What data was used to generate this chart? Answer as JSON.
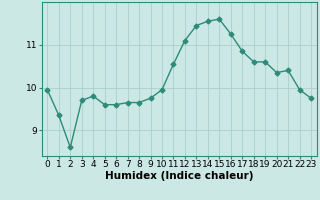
{
  "title": "",
  "xlabel": "Humidex (Indice chaleur)",
  "ylabel": "",
  "x": [
    0,
    1,
    2,
    3,
    4,
    5,
    6,
    7,
    8,
    9,
    10,
    11,
    12,
    13,
    14,
    15,
    16,
    17,
    18,
    19,
    20,
    21,
    22,
    23
  ],
  "y": [
    9.95,
    9.35,
    8.6,
    9.7,
    9.8,
    9.6,
    9.6,
    9.65,
    9.65,
    9.75,
    9.95,
    10.55,
    11.1,
    11.45,
    11.55,
    11.6,
    11.25,
    10.85,
    10.6,
    10.6,
    10.35,
    10.4,
    9.95,
    9.75
  ],
  "line_color": "#2e8b7a",
  "marker": "D",
  "marker_size": 2.5,
  "line_width": 1.0,
  "bg_color": "#cce8e4",
  "grid_color": "#aad0cc",
  "axis_color": "#2e8b7a",
  "ylim": [
    8.4,
    12.0
  ],
  "yticks": [
    9,
    10,
    11
  ],
  "xticks": [
    0,
    1,
    2,
    3,
    4,
    5,
    6,
    7,
    8,
    9,
    10,
    11,
    12,
    13,
    14,
    15,
    16,
    17,
    18,
    19,
    20,
    21,
    22,
    23
  ],
  "tick_fontsize": 6.5,
  "xlabel_fontsize": 7.5
}
